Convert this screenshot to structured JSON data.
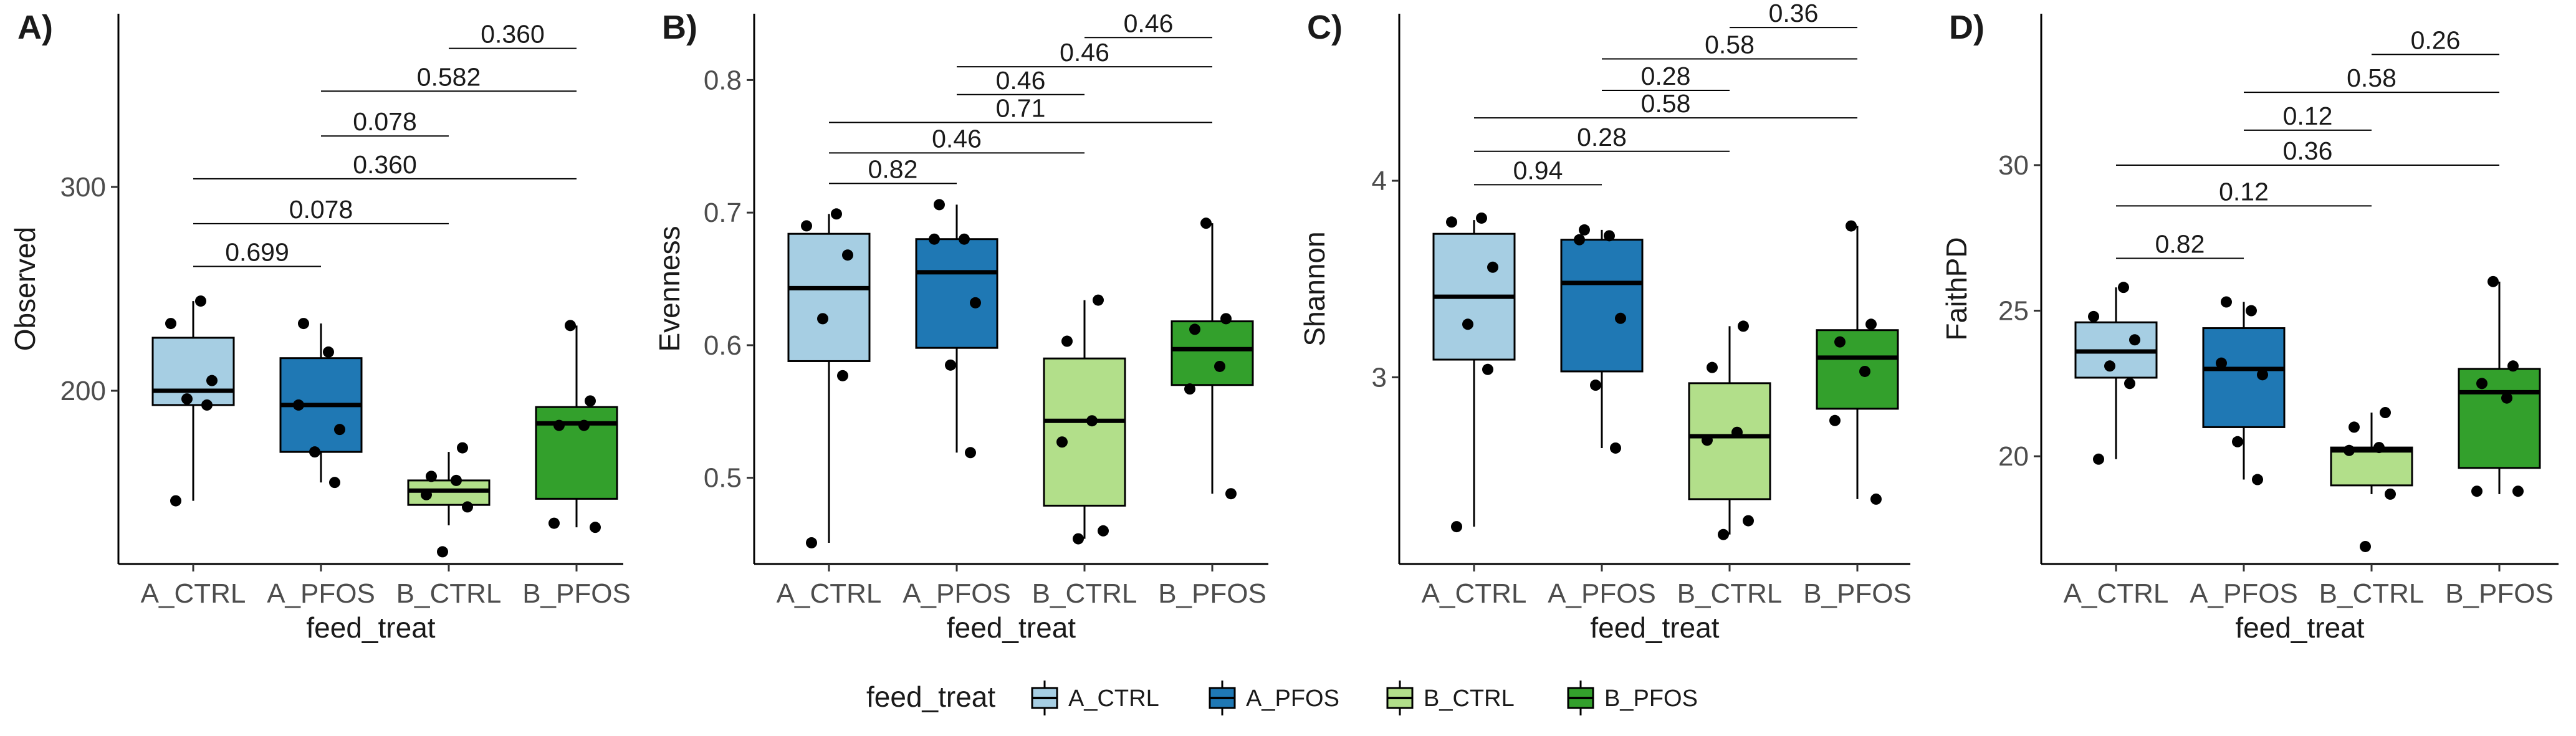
{
  "colors": {
    "A_CTRL": "#a6cee3",
    "A_PFOS": "#1f78b4",
    "B_CTRL": "#b2df8a",
    "B_PFOS": "#33a02c"
  },
  "legend": {
    "title": "feed_treat",
    "items": [
      "A_CTRL",
      "A_PFOS",
      "B_CTRL",
      "B_PFOS"
    ],
    "placement": "bottom"
  },
  "chart_data": [
    {
      "type": "box",
      "panel": "A)",
      "xlabel": "feed_treat",
      "ylabel": "Observed",
      "categories": [
        "A_CTRL",
        "A_PFOS",
        "B_CTRL",
        "B_PFOS"
      ],
      "ylim": [
        115,
        385
      ],
      "yticks": [
        200,
        300
      ],
      "boxes": [
        {
          "q1": 193,
          "median": 200,
          "q3": 226,
          "whisker_low": 146,
          "whisker_high": 244
        },
        {
          "q1": 170,
          "median": 193,
          "q3": 216,
          "whisker_low": 155,
          "whisker_high": 233
        },
        {
          "q1": 144,
          "median": 151,
          "q3": 156,
          "whisker_low": 134,
          "whisker_high": 170
        },
        {
          "q1": 147,
          "median": 184,
          "q3": 192,
          "whisker_low": 133,
          "whisker_high": 232
        }
      ],
      "points": [
        [
          146,
          193,
          196,
          205,
          233,
          244
        ],
        [
          155,
          170,
          181,
          193,
          219,
          233
        ],
        [
          121,
          143,
          149,
          156,
          158,
          172
        ],
        [
          133,
          135,
          183,
          183,
          195,
          232
        ]
      ],
      "comparisons": [
        {
          "from": 0,
          "to": 1,
          "p": "0.699"
        },
        {
          "from": 0,
          "to": 2,
          "p": "0.078"
        },
        {
          "from": 0,
          "to": 3,
          "p": "0.360"
        },
        {
          "from": 1,
          "to": 2,
          "p": "0.078"
        },
        {
          "from": 1,
          "to": 3,
          "p": "0.582"
        },
        {
          "from": 2,
          "to": 3,
          "p": "0.360"
        }
      ],
      "bracket_y": [
        261,
        282,
        304,
        325,
        347,
        368
      ]
    },
    {
      "type": "box",
      "panel": "B)",
      "xlabel": "feed_treat",
      "ylabel": "Evenness",
      "categories": [
        "A_CTRL",
        "A_PFOS",
        "B_CTRL",
        "B_PFOS"
      ],
      "ylim": [
        0.435,
        0.85
      ],
      "yticks": [
        0.5,
        0.6,
        0.7,
        0.8
      ],
      "boxes": [
        {
          "q1": 0.588,
          "median": 0.643,
          "q3": 0.684,
          "whisker_low": 0.451,
          "whisker_high": 0.699
        },
        {
          "q1": 0.598,
          "median": 0.655,
          "q3": 0.68,
          "whisker_low": 0.519,
          "whisker_high": 0.706
        },
        {
          "q1": 0.479,
          "median": 0.543,
          "q3": 0.59,
          "whisker_low": 0.454,
          "whisker_high": 0.634
        },
        {
          "q1": 0.57,
          "median": 0.597,
          "q3": 0.618,
          "whisker_low": 0.488,
          "whisker_high": 0.692
        }
      ],
      "points": [
        [
          0.451,
          0.577,
          0.62,
          0.668,
          0.69,
          0.699
        ],
        [
          0.519,
          0.585,
          0.632,
          0.68,
          0.68,
          0.706
        ],
        [
          0.454,
          0.46,
          0.527,
          0.543,
          0.603,
          0.634
        ],
        [
          0.488,
          0.567,
          0.584,
          0.612,
          0.62,
          0.692
        ]
      ],
      "comparisons": [
        {
          "from": 0,
          "to": 1,
          "p": "0.82"
        },
        {
          "from": 0,
          "to": 2,
          "p": "0.46"
        },
        {
          "from": 0,
          "to": 3,
          "p": "0.71"
        },
        {
          "from": 1,
          "to": 2,
          "p": "0.46"
        },
        {
          "from": 1,
          "to": 3,
          "p": "0.46"
        },
        {
          "from": 2,
          "to": 3,
          "p": "0.46"
        }
      ],
      "bracket_y": [
        0.722,
        0.745,
        0.768,
        0.789,
        0.81,
        0.832
      ]
    },
    {
      "type": "box",
      "panel": "C)",
      "xlabel": "feed_treat",
      "ylabel": "Shannon",
      "categories": [
        "A_CTRL",
        "A_PFOS",
        "B_CTRL",
        "B_PFOS"
      ],
      "ylim": [
        2.05,
        4.85
      ],
      "yticks": [
        3,
        4
      ],
      "boxes": [
        {
          "q1": 3.09,
          "median": 3.41,
          "q3": 3.73,
          "whisker_low": 2.24,
          "whisker_high": 3.8
        },
        {
          "q1": 3.03,
          "median": 3.48,
          "q3": 3.7,
          "whisker_low": 2.64,
          "whisker_high": 3.75
        },
        {
          "q1": 2.38,
          "median": 2.7,
          "q3": 2.97,
          "whisker_low": 2.2,
          "whisker_high": 3.26
        },
        {
          "q1": 2.84,
          "median": 3.1,
          "q3": 3.24,
          "whisker_low": 2.38,
          "whisker_high": 3.77
        }
      ],
      "points": [
        [
          2.24,
          3.04,
          3.27,
          3.56,
          3.79,
          3.81
        ],
        [
          2.64,
          2.96,
          3.3,
          3.7,
          3.72,
          3.75
        ],
        [
          2.2,
          2.27,
          2.68,
          2.72,
          3.05,
          3.26
        ],
        [
          2.38,
          2.78,
          3.03,
          3.18,
          3.27,
          3.77
        ]
      ],
      "comparisons": [
        {
          "from": 0,
          "to": 1,
          "p": "0.94"
        },
        {
          "from": 0,
          "to": 2,
          "p": "0.28"
        },
        {
          "from": 0,
          "to": 3,
          "p": "0.58"
        },
        {
          "from": 1,
          "to": 2,
          "p": "0.28"
        },
        {
          "from": 1,
          "to": 3,
          "p": "0.58"
        },
        {
          "from": 2,
          "to": 3,
          "p": "0.36"
        }
      ],
      "bracket_y": [
        3.98,
        4.15,
        4.32,
        4.46,
        4.62,
        4.78
      ]
    },
    {
      "type": "box",
      "panel": "D)",
      "xlabel": "feed_treat",
      "ylabel": "FaithPD",
      "categories": [
        "A_CTRL",
        "A_PFOS",
        "B_CTRL",
        "B_PFOS"
      ],
      "ylim": [
        16.3,
        35.2
      ],
      "yticks": [
        20,
        25,
        30
      ],
      "boxes": [
        {
          "q1": 22.7,
          "median": 23.6,
          "q3": 24.6,
          "whisker_low": 19.9,
          "whisker_high": 25.8
        },
        {
          "q1": 21.0,
          "median": 23.0,
          "q3": 24.4,
          "whisker_low": 19.2,
          "whisker_high": 25.3
        },
        {
          "q1": 19.0,
          "median": 20.2,
          "q3": 20.3,
          "whisker_low": 18.7,
          "whisker_high": 21.5
        },
        {
          "q1": 19.6,
          "median": 22.2,
          "q3": 23.0,
          "whisker_low": 18.7,
          "whisker_high": 26.0
        }
      ],
      "points": [
        [
          19.9,
          22.5,
          23.1,
          24.0,
          24.8,
          25.8
        ],
        [
          19.2,
          20.5,
          22.8,
          23.2,
          25.0,
          25.3
        ],
        [
          16.9,
          18.7,
          20.2,
          20.3,
          21.0,
          21.5
        ],
        [
          18.8,
          18.8,
          22.0,
          22.5,
          23.1,
          26.0
        ]
      ],
      "comparisons": [
        {
          "from": 0,
          "to": 1,
          "p": "0.82"
        },
        {
          "from": 0,
          "to": 2,
          "p": "0.12"
        },
        {
          "from": 0,
          "to": 3,
          "p": "0.36"
        },
        {
          "from": 1,
          "to": 2,
          "p": "0.12"
        },
        {
          "from": 1,
          "to": 3,
          "p": "0.58"
        },
        {
          "from": 2,
          "to": 3,
          "p": "0.26"
        }
      ],
      "bracket_y": [
        26.8,
        28.6,
        30.0,
        31.2,
        32.5,
        33.8
      ]
    }
  ]
}
